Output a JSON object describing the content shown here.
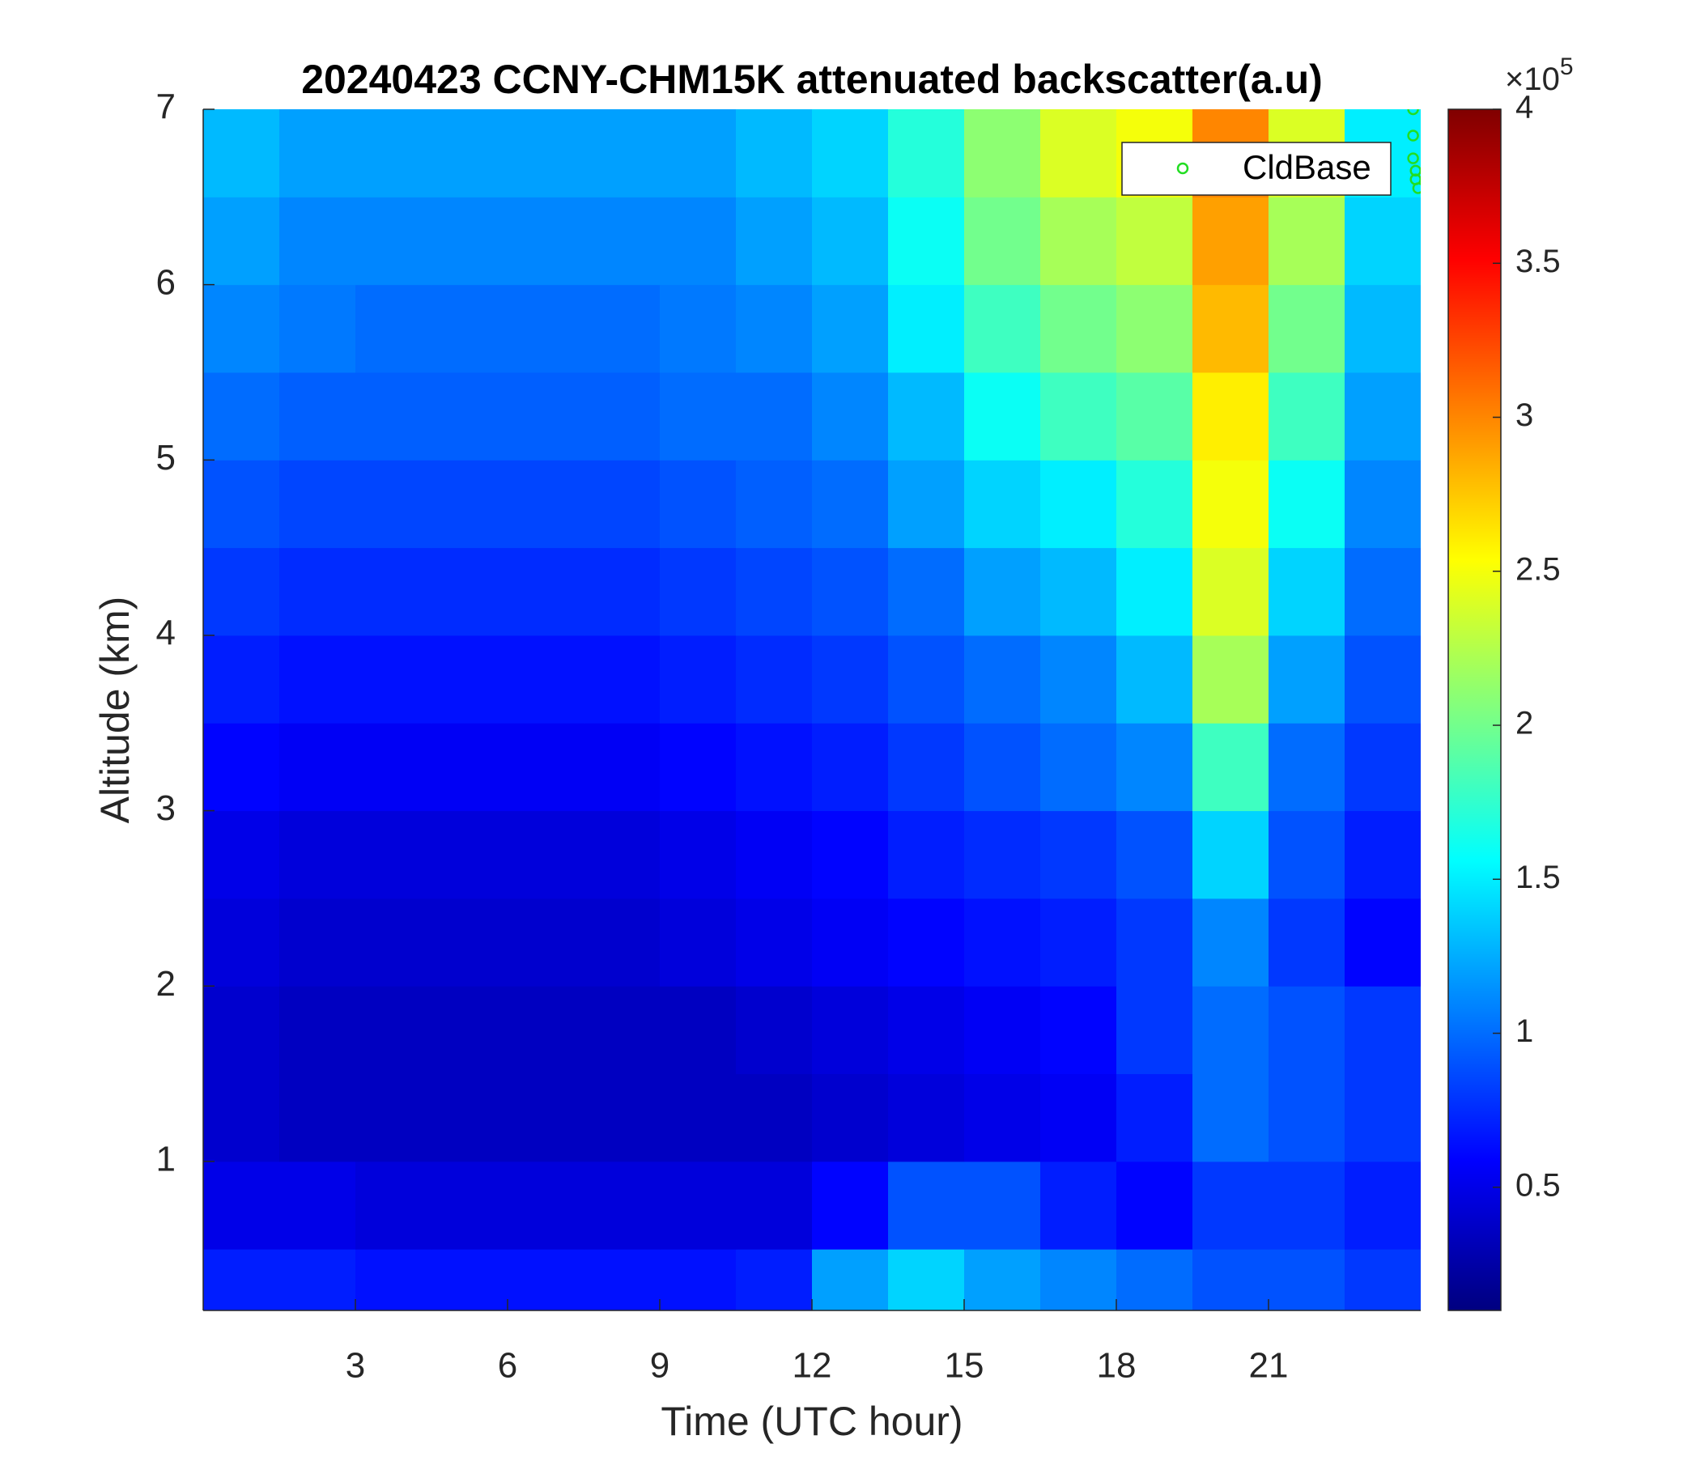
{
  "chart_data": {
    "type": "heatmap",
    "title": "20240423 CCNY-CHM15K attenuated backscatter(a.u)",
    "x_label": "Time (UTC hour)",
    "y_label": "Altitude (km)",
    "xlim": [
      0,
      24
    ],
    "xticks": [
      3,
      6,
      9,
      12,
      15,
      18,
      21
    ],
    "ylim": [
      0.15,
      7
    ],
    "yticks": [
      1,
      2,
      3,
      4,
      5,
      6,
      7
    ],
    "x_edges": [
      0,
      1.5,
      3,
      4.5,
      6,
      7.5,
      9,
      10.5,
      12,
      13.5,
      15,
      16.5,
      18,
      19.5,
      21,
      22.5,
      24
    ],
    "y_edges": [
      0.15,
      0.5,
      1,
      1.5,
      2,
      2.5,
      3,
      3.5,
      4,
      4.5,
      5,
      5.5,
      6,
      6.5,
      7
    ],
    "z": [
      [
        0.7,
        0.7,
        0.65,
        0.65,
        0.65,
        0.65,
        0.65,
        0.7,
        1.2,
        1.4,
        1.2,
        1.1,
        1.0,
        0.9,
        0.9,
        0.8
      ],
      [
        0.5,
        0.5,
        0.45,
        0.45,
        0.45,
        0.45,
        0.45,
        0.45,
        0.6,
        0.9,
        0.9,
        0.7,
        0.6,
        0.8,
        0.8,
        0.7
      ],
      [
        0.4,
        0.35,
        0.35,
        0.35,
        0.35,
        0.35,
        0.35,
        0.35,
        0.4,
        0.45,
        0.5,
        0.55,
        0.7,
        1.0,
        0.9,
        0.8
      ],
      [
        0.4,
        0.35,
        0.35,
        0.35,
        0.35,
        0.35,
        0.35,
        0.4,
        0.45,
        0.5,
        0.55,
        0.6,
        0.8,
        1.0,
        0.9,
        0.8
      ],
      [
        0.45,
        0.4,
        0.4,
        0.4,
        0.4,
        0.4,
        0.45,
        0.5,
        0.55,
        0.6,
        0.65,
        0.7,
        0.8,
        1.1,
        0.8,
        0.6
      ],
      [
        0.5,
        0.45,
        0.45,
        0.45,
        0.45,
        0.45,
        0.5,
        0.55,
        0.6,
        0.7,
        0.75,
        0.8,
        0.9,
        1.4,
        0.9,
        0.7
      ],
      [
        0.6,
        0.55,
        0.55,
        0.55,
        0.55,
        0.55,
        0.6,
        0.65,
        0.7,
        0.8,
        0.9,
        1.0,
        1.1,
        1.8,
        1.0,
        0.8
      ],
      [
        0.7,
        0.65,
        0.65,
        0.65,
        0.65,
        0.65,
        0.7,
        0.75,
        0.8,
        0.9,
        1.0,
        1.1,
        1.3,
        2.2,
        1.2,
        0.9
      ],
      [
        0.8,
        0.75,
        0.75,
        0.75,
        0.75,
        0.75,
        0.8,
        0.85,
        0.9,
        1.0,
        1.2,
        1.3,
        1.5,
        2.4,
        1.4,
        1.0
      ],
      [
        0.9,
        0.85,
        0.85,
        0.85,
        0.85,
        0.85,
        0.9,
        0.95,
        1.0,
        1.2,
        1.4,
        1.5,
        1.7,
        2.5,
        1.6,
        1.1
      ],
      [
        1.0,
        0.95,
        0.95,
        0.95,
        0.95,
        0.95,
        1.0,
        1.0,
        1.1,
        1.3,
        1.6,
        1.8,
        1.9,
        2.6,
        1.8,
        1.2
      ],
      [
        1.1,
        1.05,
        1.0,
        1.0,
        1.0,
        1.0,
        1.05,
        1.1,
        1.2,
        1.5,
        1.8,
        2.0,
        2.1,
        2.8,
        2.0,
        1.3
      ],
      [
        1.2,
        1.1,
        1.1,
        1.1,
        1.1,
        1.1,
        1.1,
        1.2,
        1.3,
        1.6,
        2.0,
        2.2,
        2.3,
        2.9,
        2.2,
        1.4
      ],
      [
        1.3,
        1.2,
        1.2,
        1.2,
        1.2,
        1.2,
        1.2,
        1.3,
        1.4,
        1.7,
        2.1,
        2.4,
        2.5,
        3.0,
        2.4,
        1.5
      ]
    ],
    "colormap": "jet",
    "clim": [
      0.1,
      4
    ],
    "cticks": [
      0.5,
      1,
      1.5,
      2,
      2.5,
      3,
      3.5,
      4
    ],
    "colorbar_multiplier": {
      "base": "×10",
      "exponent": "5"
    },
    "series": [
      {
        "name": "CldBase",
        "color": "#22dd22",
        "type": "scatter",
        "x": [
          23.85,
          23.85,
          23.85,
          23.9,
          23.9,
          23.95
        ],
        "y": [
          7.0,
          6.85,
          6.72,
          6.65,
          6.6,
          6.55
        ]
      }
    ],
    "legend": "top-right"
  }
}
